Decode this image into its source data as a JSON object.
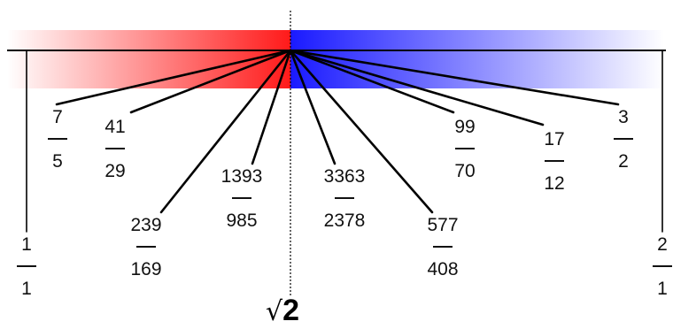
{
  "target_label": "2",
  "target_symbol": "√",
  "colors": {
    "left_band": "#ff1a1a",
    "right_band": "#1a1aff",
    "line": "#000000"
  },
  "fractions": [
    {
      "id": "1-1",
      "num": "1",
      "den": "1",
      "value": 1.0
    },
    {
      "id": "7-5",
      "num": "7",
      "den": "5",
      "value": 1.4
    },
    {
      "id": "41-29",
      "num": "41",
      "den": "29",
      "value": 1.41379
    },
    {
      "id": "239-169",
      "num": "239",
      "den": "169",
      "value": 1.4142
    },
    {
      "id": "1393-985",
      "num": "1393",
      "den": "985",
      "value": 1.4142132
    },
    {
      "id": "3363-2378",
      "num": "3363",
      "den": "2378",
      "value": 1.4142136
    },
    {
      "id": "577-408",
      "num": "577",
      "den": "408",
      "value": 1.4142157
    },
    {
      "id": "99-70",
      "num": "99",
      "den": "70",
      "value": 1.41429
    },
    {
      "id": "17-12",
      "num": "17",
      "den": "12",
      "value": 1.41667
    },
    {
      "id": "3-2",
      "num": "3",
      "den": "2",
      "value": 1.5
    },
    {
      "id": "2-1",
      "num": "2",
      "den": "1",
      "value": 2.0
    }
  ]
}
